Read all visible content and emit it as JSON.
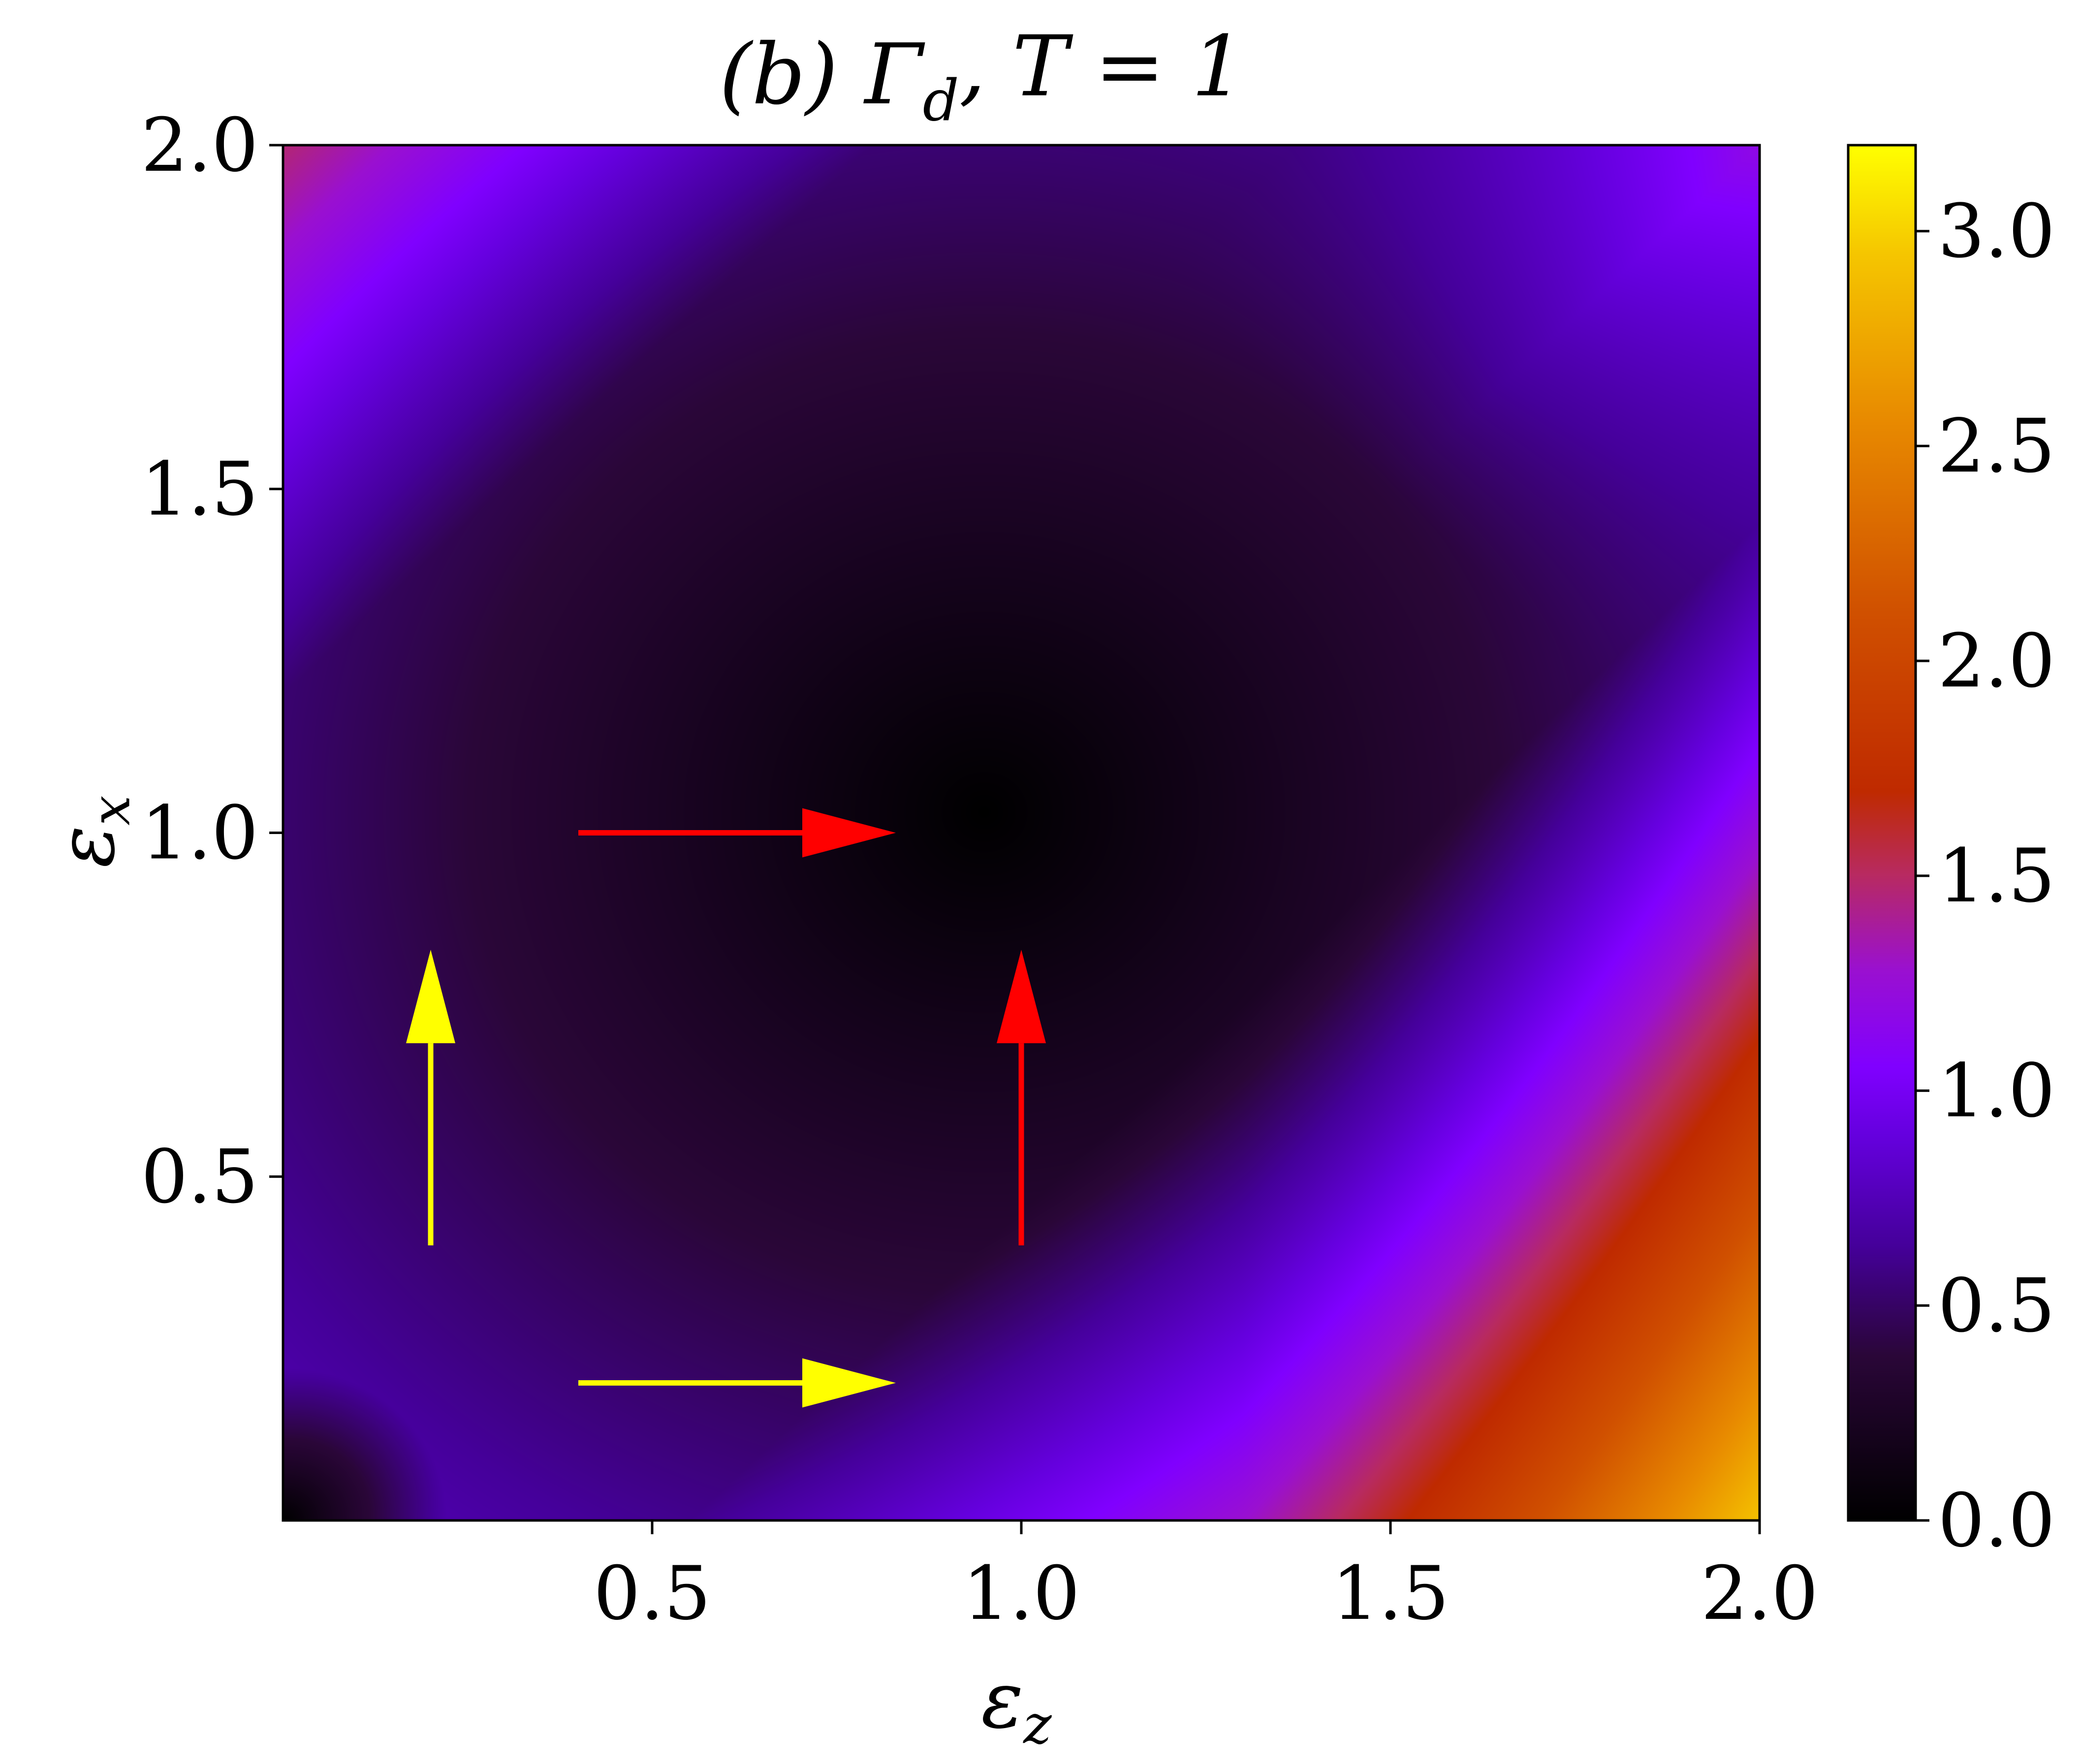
{
  "chart_data": {
    "type": "heatmap",
    "title": "(b) Γ_d, T = 1",
    "xlabel": "ε_z",
    "ylabel": "ε_x",
    "xlim": [
      0.0,
      2.0
    ],
    "ylim": [
      0.0,
      2.0
    ],
    "x_ticks": [
      0.5,
      1.0,
      1.5,
      2.0
    ],
    "x_tick_labels": [
      "0.5",
      "1.0",
      "1.5",
      "2.0"
    ],
    "y_ticks": [
      0.5,
      1.0,
      1.5,
      2.0
    ],
    "y_tick_labels": [
      "0.5",
      "1.0",
      "1.5",
      "2.0"
    ],
    "colormap": "gnuplot",
    "colorbar": {
      "range": [
        0.0,
        3.2
      ],
      "ticks": [
        0.0,
        0.5,
        1.0,
        1.5,
        2.0,
        2.5,
        3.0
      ],
      "tick_labels": [
        "0.0",
        "0.5",
        "1.0",
        "1.5",
        "2.0",
        "2.5",
        "3.0"
      ],
      "placement": "right"
    },
    "grid": false,
    "arrows": [
      {
        "color": "#ffff00",
        "from": [
          0.2,
          0.4
        ],
        "to": [
          0.2,
          0.83
        ]
      },
      {
        "color": "#ffff00",
        "from": [
          0.4,
          0.2
        ],
        "to": [
          0.83,
          0.2
        ]
      },
      {
        "color": "#ff0000",
        "from": [
          0.4,
          1.0
        ],
        "to": [
          0.83,
          1.0
        ]
      },
      {
        "color": "#ff0000",
        "from": [
          1.0,
          0.4
        ],
        "to": [
          1.0,
          0.83
        ]
      }
    ]
  }
}
